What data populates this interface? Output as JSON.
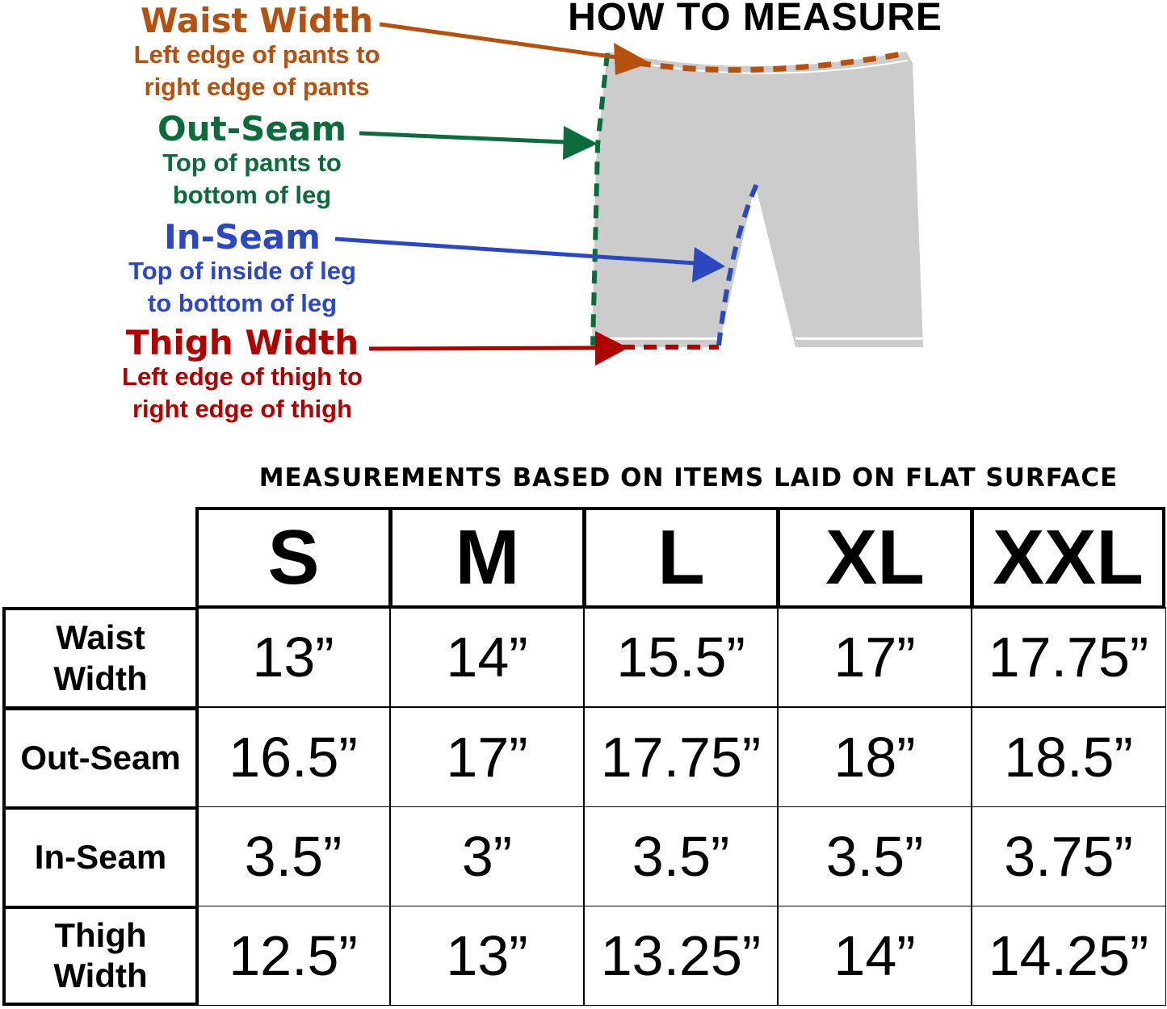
{
  "title": "HOW TO MEASURE",
  "colors": {
    "waist": "#b5500f",
    "outseam": "#0b6b3a",
    "inseam": "#2b48c0",
    "thigh": "#b00000",
    "garment": "#cbcccb"
  },
  "labels": [
    {
      "heading": "Waist Width",
      "line1": "Left edge of pants to",
      "line2": "right edge of pants"
    },
    {
      "heading": "Out-Seam",
      "line1": "Top of pants to",
      "line2": "bottom of leg"
    },
    {
      "heading": "In-Seam",
      "line1": "Top of inside of leg",
      "line2": "to bottom of leg"
    },
    {
      "heading": "Thigh Width",
      "line1": "Left edge of thigh to",
      "line2": "right edge of thigh"
    }
  ],
  "table": {
    "caption": "MEASUREMENTS BASED ON ITEMS LAID ON FLAT SURFACE",
    "sizes": [
      "S",
      "M",
      "L",
      "XL",
      "XXL"
    ],
    "rows": [
      {
        "label": "Waist Width",
        "values": [
          "13”",
          "14”",
          "15.5”",
          "17”",
          "17.75”"
        ]
      },
      {
        "label": "Out-Seam",
        "values": [
          "16.5”",
          "17”",
          "17.75”",
          "18”",
          "18.5”"
        ]
      },
      {
        "label": "In-Seam",
        "values": [
          "3.5”",
          "3”",
          "3.5”",
          "3.5”",
          "3.75”"
        ]
      },
      {
        "label": "Thigh Width",
        "values": [
          "12.5”",
          "13”",
          "13.25”",
          "14”",
          "14.25”"
        ]
      }
    ]
  }
}
